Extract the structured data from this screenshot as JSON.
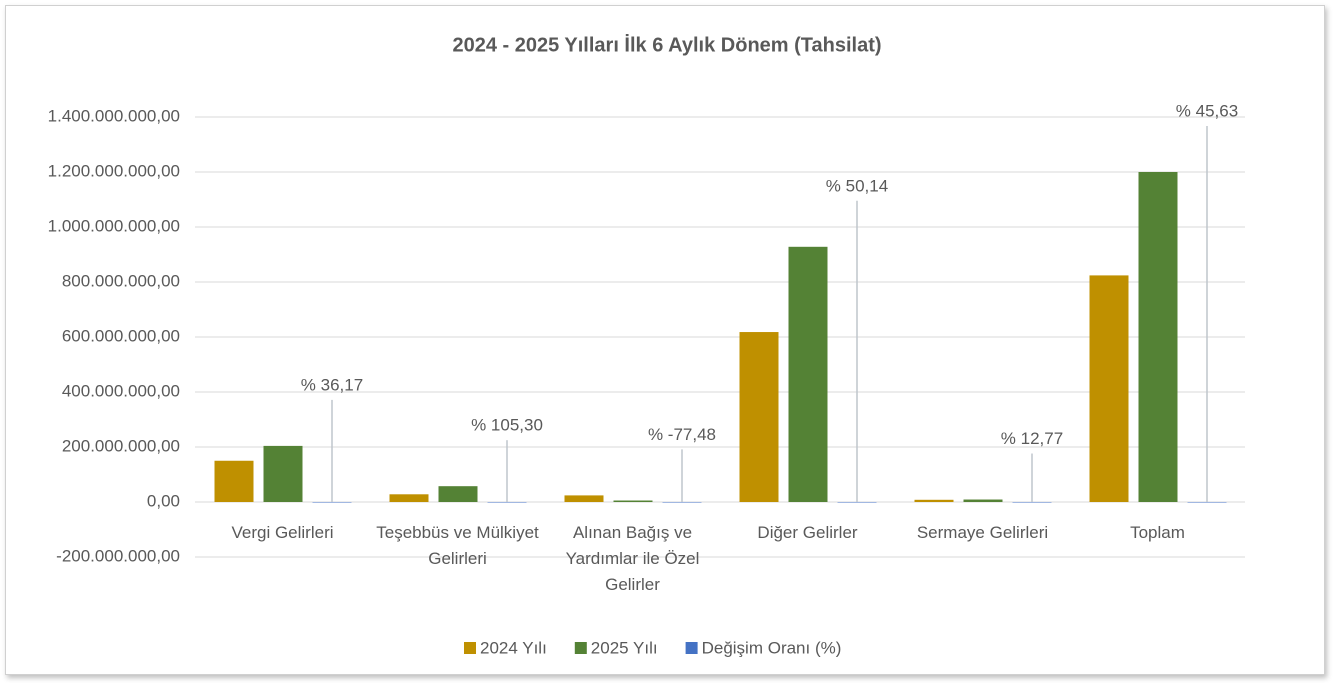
{
  "chart_data": {
    "type": "bar",
    "title": "2024 - 2025 Yılları İlk 6 Aylık Dönem (Tahsilat)",
    "categories": [
      "Vergi Gelirleri",
      "Teşebbüs ve Mülkiyet Gelirleri",
      "Alınan Bağış ve Yardımlar ile Özel Gelirler",
      "Diğer Gelirler",
      "Sermaye Gelirleri",
      "Toplam"
    ],
    "series": [
      {
        "name": "2024 Yılı",
        "color": "#bf9000",
        "values": [
          150000000,
          28000000,
          24000000,
          618000000,
          8000000,
          824000000
        ]
      },
      {
        "name": "2025 Yılı",
        "color": "#548235",
        "values": [
          204000000,
          57500000,
          5400000,
          928000000,
          9000000,
          1200000000
        ]
      },
      {
        "name": "Değişim Oranı (%)",
        "color": "#4472c4",
        "values": [
          36.17,
          105.3,
          -77.48,
          50.14,
          12.77,
          45.63
        ],
        "value_labels": [
          "% 36,17",
          "% 105,30",
          "% -77,48",
          "% 50,14",
          "% 12,77",
          "% 45,63"
        ]
      }
    ],
    "ylim": [
      -200000000,
      1400000000
    ],
    "yticks": [
      {
        "value": -200000000,
        "label": "-200.000.000,00"
      },
      {
        "value": 0,
        "label": "0,00"
      },
      {
        "value": 200000000,
        "label": "200.000.000,00"
      },
      {
        "value": 400000000,
        "label": "400.000.000,00"
      },
      {
        "value": 600000000,
        "label": "600.000.000,00"
      },
      {
        "value": 800000000,
        "label": "800.000.000,00"
      },
      {
        "value": 1000000000,
        "label": "1.000.000.000,00"
      },
      {
        "value": 1200000000,
        "label": "1.200.000.000,00"
      },
      {
        "value": 1400000000,
        "label": "1.400.000.000,00"
      }
    ],
    "grid": true,
    "legend": "bottom"
  }
}
